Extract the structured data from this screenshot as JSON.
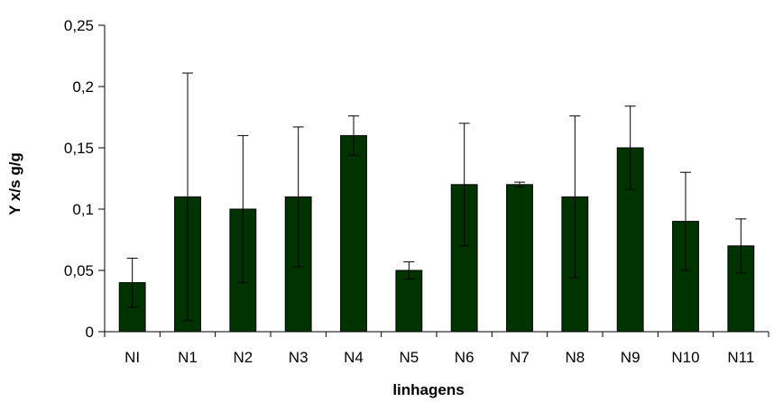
{
  "chart_data": {
    "type": "bar",
    "title": "",
    "xlabel": "linhagens",
    "ylabel": "Y x/s  g/g",
    "ylim": [
      0,
      0.25
    ],
    "yticks": [
      0,
      0.05,
      0.1,
      0.15,
      0.2,
      0.25
    ],
    "ytick_labels": [
      "0",
      "0,05",
      "0,1",
      "0,15",
      "0,2",
      "0,25"
    ],
    "grid": false,
    "legend": "none",
    "categories": [
      "NI",
      "N1",
      "N2",
      "N3",
      "N4",
      "N5",
      "N6",
      "N7",
      "N8",
      "N9",
      "N10",
      "N11"
    ],
    "values": [
      0.04,
      0.11,
      0.1,
      0.11,
      0.16,
      0.05,
      0.12,
      0.12,
      0.11,
      0.15,
      0.09,
      0.07
    ],
    "error": [
      0.02,
      0.101,
      0.06,
      0.057,
      0.016,
      0.007,
      0.05,
      0.002,
      0.066,
      0.034,
      0.04,
      0.022
    ],
    "bar_color": "#003300"
  }
}
